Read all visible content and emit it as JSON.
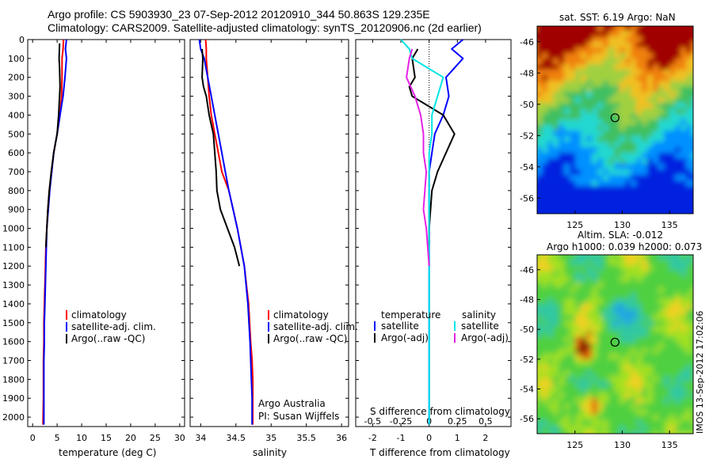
{
  "header": {
    "line1": "Argo profile: CS 5903930_23 07-Sep-2012 20120910_344 50.863S 129.235E",
    "line2": "Climatology: CARS2009. Satellite-adjusted climatology: synTS_20120906.nc (2d earlier)"
  },
  "footer_stamp": "IMOS 13-Sep-2012 17:02:06",
  "colors": {
    "climatology": "#ff0000",
    "satellite": "#0000ff",
    "argo": "#000000",
    "salinity_satellite": "#00e5e5",
    "salinity_argo": "#e522e5"
  },
  "panels": {
    "temperature": {
      "xlabel": "temperature (deg C)",
      "legend": [
        "climatology",
        "satellite-adj. clim.",
        "Argo(..raw -QC)"
      ]
    },
    "salinity": {
      "xlabel": "salinity",
      "legend": [
        "climatology",
        "satellite-adj. clim.",
        "Argo(..raw -QC)"
      ],
      "note1": "Argo Australia",
      "note2": "PI: Susan Wijffels"
    },
    "difference": {
      "xlabel": "T difference from climatology",
      "top_label": "S difference from climatology",
      "legend_t_title": "temperature",
      "legend_t": [
        "satellite",
        "Argo(-adj)"
      ],
      "legend_s_title": "salinity",
      "legend_s": [
        "satellite",
        "Argo(-adj)"
      ]
    },
    "sst_map": {
      "title": "sat. SST: 6.19 Argo: NaN"
    },
    "sla_map": {
      "title1": "Altim. SLA: -0.012",
      "title2": "Argo h1000: 0.039 h2000: 0.073"
    }
  },
  "chart_data": [
    {
      "type": "line",
      "title": "",
      "xlabel": "temperature (deg C)",
      "ylabel": "",
      "xlim": [
        -1,
        31
      ],
      "ylim": [
        0,
        2050
      ],
      "y_reversed": true,
      "xticks": [
        0,
        5,
        10,
        15,
        20,
        25,
        30
      ],
      "yticks": [
        0,
        100,
        200,
        300,
        400,
        500,
        600,
        700,
        800,
        900,
        1000,
        1100,
        1200,
        1300,
        1400,
        1500,
        1600,
        1700,
        1800,
        1900,
        2000
      ],
      "series": [
        {
          "name": "climatology",
          "color": "#ff0000",
          "x": [
            6.3,
            6.2,
            6.0,
            6.0,
            5.9,
            5.6,
            5.0,
            4.3,
            3.9,
            3.4,
            3.1,
            2.9,
            2.7,
            2.6,
            2.5,
            2.4,
            2.3,
            2.3,
            2.2,
            2.2,
            2.2,
            2.1
          ],
          "y": [
            0,
            50,
            100,
            200,
            300,
            400,
            500,
            600,
            700,
            800,
            900,
            1000,
            1100,
            1200,
            1300,
            1400,
            1500,
            1600,
            1700,
            1800,
            1900,
            2040
          ]
        },
        {
          "name": "satellite-adj. clim.",
          "color": "#0000ff",
          "x": [
            6.9,
            6.7,
            6.9,
            6.6,
            6.2,
            5.6,
            5.0,
            4.3,
            3.9,
            3.5,
            3.2,
            2.9,
            2.8,
            2.7,
            2.6,
            2.5,
            2.4,
            2.4,
            2.3,
            2.3,
            2.3,
            2.3
          ],
          "y": [
            0,
            50,
            100,
            200,
            300,
            400,
            500,
            600,
            700,
            800,
            900,
            1000,
            1100,
            1200,
            1300,
            1400,
            1500,
            1600,
            1700,
            1800,
            1900,
            2040
          ]
        },
        {
          "name": "Argo(..raw -QC)",
          "color": "#000000",
          "x": [
            5.5,
            5.4,
            5.5,
            5.6,
            5.5,
            5.3,
            5.0,
            4.3,
            3.8,
            3.4,
            3.1,
            2.9,
            2.7
          ],
          "y": [
            20,
            100,
            150,
            250,
            300,
            400,
            500,
            600,
            700,
            800,
            900,
            1000,
            1100
          ]
        }
      ]
    },
    {
      "type": "line",
      "title": "",
      "xlabel": "salinity",
      "ylabel": "",
      "xlim": [
        33.85,
        36.1
      ],
      "ylim": [
        0,
        2050
      ],
      "y_reversed": true,
      "xticks": [
        34,
        34.5,
        35,
        35.5,
        36
      ],
      "series": [
        {
          "name": "climatology",
          "color": "#ff0000",
          "x": [
            34.07,
            34.08,
            34.08,
            34.1,
            34.12,
            34.15,
            34.2,
            34.25,
            34.3,
            34.4,
            34.52,
            34.62,
            34.68,
            34.71,
            34.73,
            34.74,
            34.74,
            34.74
          ],
          "y": [
            0,
            50,
            100,
            200,
            300,
            400,
            500,
            600,
            700,
            800,
            1000,
            1200,
            1400,
            1600,
            1700,
            1800,
            1900,
            2040
          ]
        },
        {
          "name": "satellite-adj. clim.",
          "color": "#0000ff",
          "x": [
            33.98,
            34.0,
            34.05,
            34.1,
            34.15,
            34.2,
            34.25,
            34.3,
            34.35,
            34.4,
            34.52,
            34.62,
            34.67,
            34.7,
            34.72,
            34.73,
            34.73
          ],
          "y": [
            0,
            50,
            100,
            200,
            300,
            400,
            500,
            600,
            700,
            800,
            1000,
            1200,
            1400,
            1600,
            1800,
            1900,
            2040
          ]
        },
        {
          "name": "Argo(..raw -QC)",
          "color": "#000000",
          "x": [
            34.02,
            34.03,
            34.02,
            34.04,
            34.08,
            34.12,
            34.18,
            34.2,
            34.22,
            34.23,
            34.28,
            34.38,
            34.48,
            34.55
          ],
          "y": [
            50,
            100,
            200,
            250,
            300,
            400,
            500,
            600,
            700,
            800,
            900,
            1000,
            1100,
            1200
          ]
        }
      ]
    },
    {
      "type": "line",
      "title": "",
      "xlabel": "T difference from climatology",
      "top_label": "S difference from climatology",
      "ylabel": "",
      "xlim": [
        -2.6,
        2.9
      ],
      "ylim": [
        0,
        2050
      ],
      "y_reversed": true,
      "xticks": [
        -2,
        -1,
        0,
        1,
        2
      ],
      "s_xticks": [
        "-0.5",
        "-0.25",
        "0",
        "0.25",
        "0.5"
      ],
      "series": [
        {
          "name": "temperature satellite",
          "color": "#0000ff",
          "x": [
            1.2,
            0.8,
            1.2,
            0.6,
            0.7,
            0.5,
            0.2,
            0.1,
            0.0,
            0.0,
            0.0,
            0.0,
            0.0,
            0.0,
            0.0,
            0.0
          ],
          "y": [
            0,
            50,
            100,
            200,
            300,
            400,
            500,
            600,
            700,
            800,
            1000,
            1200,
            1400,
            1600,
            1800,
            2040
          ]
        },
        {
          "name": "temperature Argo(-adj)",
          "color": "#000000",
          "x": [
            -0.4,
            -0.6,
            -0.5,
            -0.7,
            -0.6,
            0.5,
            0.9,
            0.6,
            0.3,
            0.1,
            0.0,
            0.0
          ],
          "y": [
            50,
            100,
            200,
            250,
            300,
            400,
            500,
            600,
            700,
            800,
            1000,
            1100
          ]
        },
        {
          "name": "salinity satellite",
          "color": "#00e5e5",
          "x": [
            -1.0,
            -0.7,
            -0.6,
            0.5,
            0.3,
            0.1,
            0.1,
            0.0,
            0.0,
            0.0,
            0.0,
            0.0
          ],
          "y": [
            0,
            50,
            100,
            200,
            300,
            400,
            500,
            600,
            800,
            1000,
            1400,
            2040
          ]
        },
        {
          "name": "salinity Argo(-adj)",
          "color": "#e522e5",
          "x": [
            -0.6,
            -0.7,
            -0.8,
            -0.5,
            -0.3,
            -0.2,
            -0.2,
            -0.1,
            -0.2,
            -0.1,
            0.0
          ],
          "y": [
            50,
            100,
            200,
            300,
            400,
            500,
            600,
            700,
            900,
            1000,
            1200
          ]
        }
      ]
    },
    {
      "type": "heatmap",
      "title": "sat. SST: 6.19 Argo: NaN",
      "xlim": [
        121,
        137.5
      ],
      "ylim": [
        -57,
        -45
      ],
      "xticks": [
        125,
        130,
        135
      ],
      "yticks": [
        -46,
        -48,
        -50,
        -52,
        -54,
        -56
      ],
      "marker": {
        "x": 129.235,
        "y": -50.863
      }
    },
    {
      "type": "heatmap",
      "title": "Altim. SLA: -0.012",
      "subtitle": "Argo h1000: 0.039 h2000: 0.073",
      "xlim": [
        121,
        137.5
      ],
      "ylim": [
        -57,
        -45
      ],
      "xticks": [
        125,
        130,
        135
      ],
      "yticks": [
        -46,
        -48,
        -50,
        -52,
        -54,
        -56
      ],
      "marker": {
        "x": 129.235,
        "y": -50.863
      }
    }
  ]
}
